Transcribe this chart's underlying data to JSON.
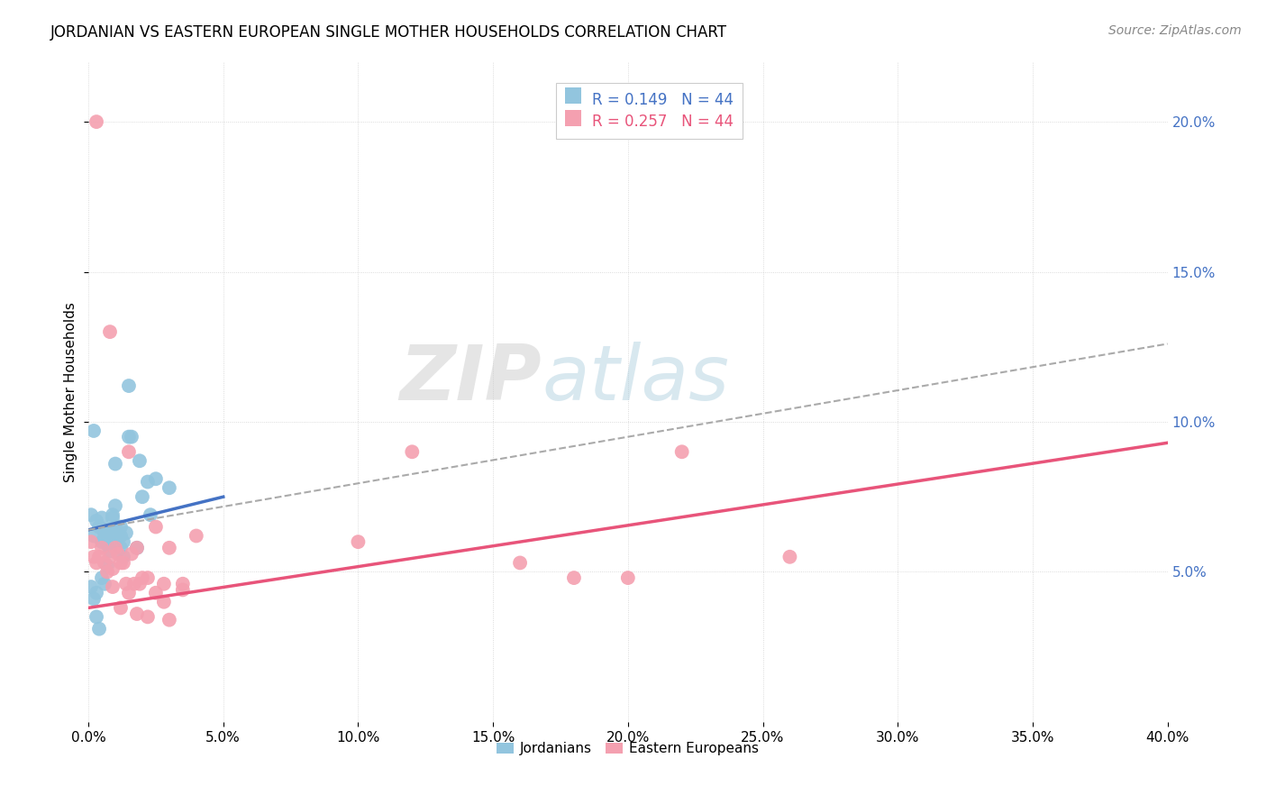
{
  "title": "JORDANIAN VS EASTERN EUROPEAN SINGLE MOTHER HOUSEHOLDS CORRELATION CHART",
  "source": "Source: ZipAtlas.com",
  "ylabel": "Single Mother Households",
  "xlim": [
    0.0,
    0.4
  ],
  "ylim": [
    0.0,
    0.22
  ],
  "legend_r1": "R = 0.149   N = 44",
  "legend_r2": "R = 0.257   N = 44",
  "legend_label1": "Jordanians",
  "legend_label2": "Eastern Europeans",
  "watermark_zip": "ZIP",
  "watermark_atlas": "atlas",
  "blue_color": "#92C5DE",
  "pink_color": "#F4A0B0",
  "blue_line_color": "#4472C4",
  "pink_line_color": "#E8547A",
  "dashed_line_color": "#AAAAAA",
  "blue_scatter": [
    [
      0.001,
      0.069
    ],
    [
      0.002,
      0.062
    ],
    [
      0.003,
      0.067
    ],
    [
      0.004,
      0.065
    ],
    [
      0.005,
      0.068
    ],
    [
      0.005,
      0.06
    ],
    [
      0.006,
      0.063
    ],
    [
      0.006,
      0.061
    ],
    [
      0.007,
      0.059
    ],
    [
      0.007,
      0.064
    ],
    [
      0.008,
      0.06
    ],
    [
      0.008,
      0.057
    ],
    [
      0.009,
      0.068
    ],
    [
      0.009,
      0.063
    ],
    [
      0.01,
      0.086
    ],
    [
      0.01,
      0.072
    ],
    [
      0.012,
      0.065
    ],
    [
      0.012,
      0.062
    ],
    [
      0.013,
      0.06
    ],
    [
      0.014,
      0.063
    ],
    [
      0.015,
      0.112
    ],
    [
      0.016,
      0.095
    ],
    [
      0.018,
      0.058
    ],
    [
      0.019,
      0.087
    ],
    [
      0.02,
      0.075
    ],
    [
      0.022,
      0.08
    ],
    [
      0.023,
      0.069
    ],
    [
      0.025,
      0.081
    ],
    [
      0.03,
      0.078
    ],
    [
      0.001,
      0.045
    ],
    [
      0.002,
      0.041
    ],
    [
      0.003,
      0.043
    ],
    [
      0.005,
      0.048
    ],
    [
      0.006,
      0.046
    ],
    [
      0.007,
      0.052
    ],
    [
      0.009,
      0.069
    ],
    [
      0.01,
      0.065
    ],
    [
      0.011,
      0.062
    ],
    [
      0.012,
      0.058
    ],
    [
      0.013,
      0.055
    ],
    [
      0.003,
      0.035
    ],
    [
      0.004,
      0.031
    ],
    [
      0.002,
      0.097
    ],
    [
      0.015,
      0.095
    ]
  ],
  "pink_scatter": [
    [
      0.001,
      0.06
    ],
    [
      0.002,
      0.055
    ],
    [
      0.003,
      0.053
    ],
    [
      0.004,
      0.055
    ],
    [
      0.005,
      0.058
    ],
    [
      0.006,
      0.053
    ],
    [
      0.007,
      0.05
    ],
    [
      0.008,
      0.055
    ],
    [
      0.009,
      0.051
    ],
    [
      0.01,
      0.058
    ],
    [
      0.011,
      0.056
    ],
    [
      0.012,
      0.053
    ],
    [
      0.013,
      0.053
    ],
    [
      0.014,
      0.046
    ],
    [
      0.015,
      0.043
    ],
    [
      0.016,
      0.056
    ],
    [
      0.017,
      0.046
    ],
    [
      0.018,
      0.058
    ],
    [
      0.019,
      0.046
    ],
    [
      0.02,
      0.048
    ],
    [
      0.022,
      0.048
    ],
    [
      0.025,
      0.043
    ],
    [
      0.028,
      0.046
    ],
    [
      0.03,
      0.058
    ],
    [
      0.035,
      0.044
    ],
    [
      0.003,
      0.2
    ],
    [
      0.008,
      0.13
    ],
    [
      0.015,
      0.09
    ],
    [
      0.025,
      0.065
    ],
    [
      0.04,
      0.062
    ],
    [
      0.035,
      0.046
    ],
    [
      0.12,
      0.09
    ],
    [
      0.18,
      0.048
    ],
    [
      0.22,
      0.09
    ],
    [
      0.26,
      0.055
    ],
    [
      0.1,
      0.06
    ],
    [
      0.16,
      0.053
    ],
    [
      0.2,
      0.048
    ],
    [
      0.009,
      0.045
    ],
    [
      0.012,
      0.038
    ],
    [
      0.018,
      0.036
    ],
    [
      0.028,
      0.04
    ],
    [
      0.022,
      0.035
    ],
    [
      0.03,
      0.034
    ]
  ],
  "blue_trendline": [
    [
      0.0,
      0.064
    ],
    [
      0.05,
      0.075
    ]
  ],
  "pink_trendline": [
    [
      0.0,
      0.038
    ],
    [
      0.4,
      0.093
    ]
  ],
  "dashed_line": [
    [
      0.0,
      0.064
    ],
    [
      0.4,
      0.126
    ]
  ]
}
